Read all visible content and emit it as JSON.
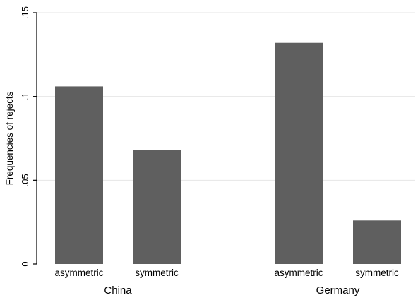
{
  "chart_data": {
    "type": "bar",
    "ylabel": "Frequencies of rejects",
    "xlabel": "",
    "title": "",
    "ylim": [
      0,
      0.15
    ],
    "yticks": [
      0,
      0.05,
      0.1,
      0.15
    ],
    "ytick_labels": [
      "0",
      ".05",
      ".1",
      ".15"
    ],
    "grid": true,
    "groups": [
      {
        "name": "China",
        "categories": [
          "asymmetric",
          "symmetric"
        ],
        "values": [
          0.106,
          0.068
        ]
      },
      {
        "name": "Germany",
        "categories": [
          "asymmetric",
          "symmetric"
        ],
        "values": [
          0.132,
          0.026
        ]
      }
    ],
    "colors": {
      "bar": "#5f5f5f",
      "grid": "#e6e6e6",
      "axis": "#000000"
    }
  }
}
